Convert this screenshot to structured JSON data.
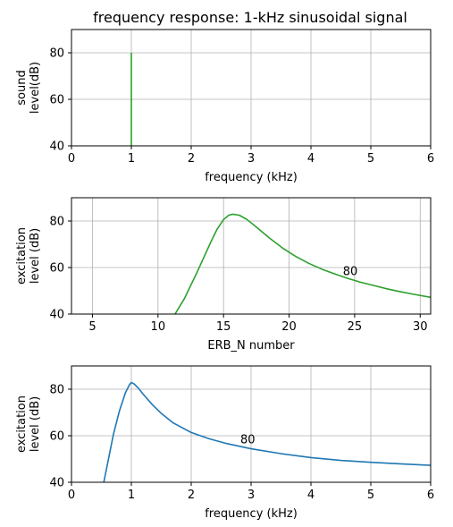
{
  "figure": {
    "title": "frequency response: 1-kHz sinusoidal signal"
  },
  "chart_data": [
    {
      "type": "line",
      "title": "frequency response: 1-kHz sinusoidal signal",
      "xlabel": "frequency (kHz)",
      "ylabel_lines": [
        "sound",
        "level(dB)"
      ],
      "xlim": [
        0,
        6
      ],
      "ylim": [
        40,
        90
      ],
      "xticks": [
        0,
        1,
        2,
        3,
        4,
        5,
        6
      ],
      "yticks": [
        40,
        60,
        80
      ],
      "grid": true,
      "series": [
        {
          "color": "#2ca02c",
          "x": [
            1,
            1
          ],
          "y": [
            40,
            80
          ]
        }
      ],
      "annotations": []
    },
    {
      "type": "line",
      "title": "",
      "xlabel": "ERB_N number",
      "ylabel_lines": [
        "excitation",
        "level (dB)"
      ],
      "xlim": [
        3.4,
        30.8
      ],
      "ylim": [
        40,
        90
      ],
      "xticks": [
        5,
        10,
        15,
        20,
        25,
        30
      ],
      "yticks": [
        40,
        60,
        80
      ],
      "grid": true,
      "series": [
        {
          "color": "#2ca02c",
          "x": [
            11.3,
            12,
            13,
            14,
            14.5,
            15,
            15.4,
            15.7,
            16.2,
            16.8,
            17.5,
            18.5,
            19.5,
            20.5,
            21.5,
            22.5,
            23.5,
            24.5,
            25.5,
            26.5,
            27.5,
            28.5,
            29.5,
            30.8
          ],
          "y": [
            40,
            46.5,
            58.2,
            70.6,
            76.4,
            80.6,
            82.5,
            82.9,
            82.5,
            80.6,
            77.4,
            72.7,
            68.4,
            64.8,
            61.8,
            59.3,
            57.2,
            55.3,
            53.6,
            52.2,
            50.8,
            49.6,
            48.5,
            47.2
          ]
        }
      ],
      "annotations": [
        {
          "text": "80",
          "x": 24.1,
          "y": 56.7
        }
      ]
    },
    {
      "type": "line",
      "title": "",
      "xlabel": "frequency (kHz)",
      "ylabel_lines": [
        "excitation",
        "level (dB)"
      ],
      "xlim": [
        0,
        6
      ],
      "ylim": [
        40,
        90
      ],
      "xticks": [
        0,
        1,
        2,
        3,
        4,
        5,
        6
      ],
      "yticks": [
        40,
        60,
        80
      ],
      "grid": true,
      "series": [
        {
          "color": "#1f77b4",
          "x": [
            0.54,
            0.6,
            0.7,
            0.8,
            0.9,
            0.97,
            1.0,
            1.05,
            1.12,
            1.2,
            1.35,
            1.5,
            1.7,
            2.0,
            2.3,
            2.6,
            3.0,
            3.5,
            4.0,
            4.5,
            5.0,
            5.5,
            6.0
          ],
          "y": [
            40,
            47.7,
            60.5,
            70.6,
            78.4,
            82.0,
            82.9,
            82.2,
            80.4,
            77.8,
            73.4,
            69.6,
            65.5,
            61.4,
            58.7,
            56.6,
            54.4,
            52.3,
            50.6,
            49.4,
            48.6,
            47.9,
            47.3
          ]
        }
      ],
      "annotations": [
        {
          "text": "80",
          "x": 2.82,
          "y": 56.7
        }
      ]
    }
  ]
}
